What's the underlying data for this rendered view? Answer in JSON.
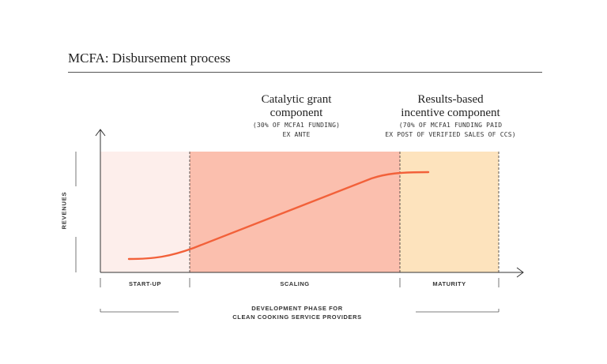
{
  "title": "MCFA: Disbursement process",
  "components": {
    "catalytic": {
      "title": "Catalytic grant\ncomponent",
      "note": "(30% OF MCFA1 FUNDING)\nEX ANTE"
    },
    "results": {
      "title": "Results-based\nincentive component",
      "note": "(70% OF MCFA1 FUNDING PAID\nEX POST OF VERIFIED SALES OF CCS)"
    }
  },
  "axis": {
    "y_label": "REVENUES"
  },
  "phases": {
    "startup": "START-UP",
    "scaling": "SCALING",
    "maturity": "MATURITY"
  },
  "footer": "DEVELOPMENT PHASE FOR\nCLEAN COOKING SERVICE PROVIDERS",
  "colors": {
    "startup_fill": "#fdeeeb",
    "scaling_fill": "#fbbfae",
    "maturity_fill": "#fde3bd",
    "curve": "#f2613a",
    "axis": "#333333"
  }
}
